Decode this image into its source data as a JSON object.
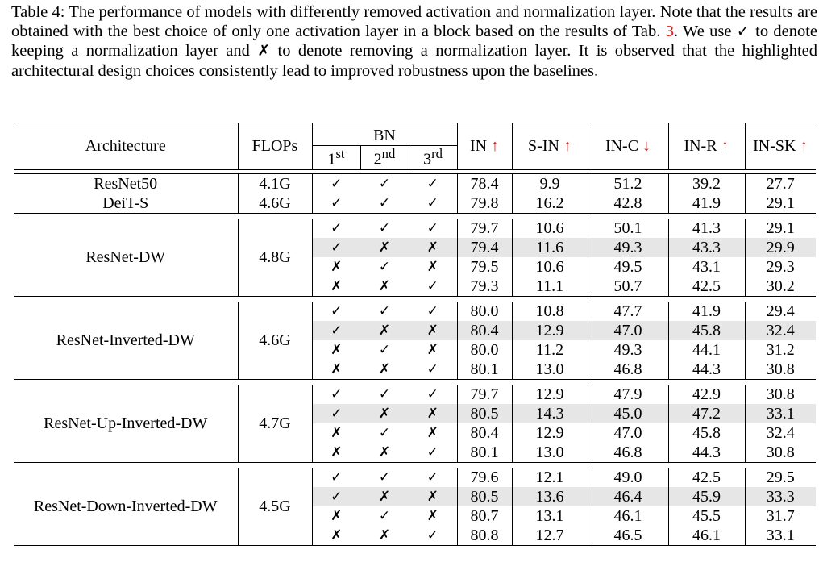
{
  "caption": {
    "prefix": "Table 4: The performance of models with differently removed activation and normalization layer. Note that the results are obtained with the best choice of only one activation layer in a block based on the results of Tab. ",
    "ref": "3",
    "middle1": ". We use ",
    "check": "✓",
    "middle2": " to denote keeping a normalization layer and ",
    "cross": "✗",
    "suffix": " to denote removing a normalization layer. It is observed that the highlighted architectural design choices consistently lead to improved robustness upon the baselines."
  },
  "header": {
    "architecture": "Architecture",
    "flops": "FLOPs",
    "bn": "BN",
    "bn_sub": [
      {
        "num": "1",
        "sup": "st"
      },
      {
        "num": "2",
        "sup": "nd"
      },
      {
        "num": "3",
        "sup": "rd"
      }
    ],
    "metrics": [
      {
        "label": "IN",
        "arrow": "↑"
      },
      {
        "label": "S-IN",
        "arrow": "↑"
      },
      {
        "label": "IN-C",
        "arrow": "↓"
      },
      {
        "label": "IN-R",
        "arrow": "↑"
      },
      {
        "label": "IN-SK",
        "arrow": "↑"
      }
    ]
  },
  "baselines": [
    {
      "arch": "ResNet50",
      "flops": "4.1G",
      "bn": [
        "✓",
        "✓",
        "✓"
      ],
      "values": [
        "78.4",
        "9.9",
        "51.2",
        "39.2",
        "27.7"
      ]
    },
    {
      "arch": "DeiT-S",
      "flops": "4.6G",
      "bn": [
        "✓",
        "✓",
        "✓"
      ],
      "values": [
        "79.8",
        "16.2",
        "42.8",
        "41.9",
        "29.1"
      ]
    }
  ],
  "groups": [
    {
      "arch": "ResNet-DW",
      "flops": "4.8G",
      "rows": [
        {
          "bn": [
            "✓",
            "✓",
            "✓"
          ],
          "values": [
            "79.7",
            "10.6",
            "50.1",
            "41.3",
            "29.1"
          ],
          "highlight": false
        },
        {
          "bn": [
            "✓",
            "✗",
            "✗"
          ],
          "values": [
            "79.4",
            "11.6",
            "49.3",
            "43.3",
            "29.9"
          ],
          "highlight": true
        },
        {
          "bn": [
            "✗",
            "✓",
            "✗"
          ],
          "values": [
            "79.5",
            "10.6",
            "49.5",
            "43.1",
            "29.3"
          ],
          "highlight": false
        },
        {
          "bn": [
            "✗",
            "✗",
            "✓"
          ],
          "values": [
            "79.3",
            "11.1",
            "50.7",
            "42.5",
            "30.2"
          ],
          "highlight": false
        }
      ]
    },
    {
      "arch": "ResNet-Inverted-DW",
      "flops": "4.6G",
      "rows": [
        {
          "bn": [
            "✓",
            "✓",
            "✓"
          ],
          "values": [
            "80.0",
            "10.8",
            "47.7",
            "41.9",
            "29.4"
          ],
          "highlight": false
        },
        {
          "bn": [
            "✓",
            "✗",
            "✗"
          ],
          "values": [
            "80.4",
            "12.9",
            "47.0",
            "45.8",
            "32.4"
          ],
          "highlight": true
        },
        {
          "bn": [
            "✗",
            "✓",
            "✗"
          ],
          "values": [
            "80.0",
            "11.2",
            "49.3",
            "44.1",
            "31.2"
          ],
          "highlight": false
        },
        {
          "bn": [
            "✗",
            "✗",
            "✓"
          ],
          "values": [
            "80.1",
            "13.0",
            "46.8",
            "44.3",
            "30.8"
          ],
          "highlight": false
        }
      ]
    },
    {
      "arch": "ResNet-Up-Inverted-DW",
      "flops": "4.7G",
      "rows": [
        {
          "bn": [
            "✓",
            "✓",
            "✓"
          ],
          "values": [
            "79.7",
            "12.9",
            "47.9",
            "42.9",
            "30.8"
          ],
          "highlight": false
        },
        {
          "bn": [
            "✓",
            "✗",
            "✗"
          ],
          "values": [
            "80.5",
            "14.3",
            "45.0",
            "47.2",
            "33.1"
          ],
          "highlight": true
        },
        {
          "bn": [
            "✗",
            "✓",
            "✗"
          ],
          "values": [
            "80.4",
            "12.9",
            "47.0",
            "45.8",
            "32.4"
          ],
          "highlight": false
        },
        {
          "bn": [
            "✗",
            "✗",
            "✓"
          ],
          "values": [
            "80.1",
            "13.0",
            "46.8",
            "44.3",
            "30.8"
          ],
          "highlight": false
        }
      ]
    },
    {
      "arch": "ResNet-Down-Inverted-DW",
      "flops": "4.5G",
      "rows": [
        {
          "bn": [
            "✓",
            "✓",
            "✓"
          ],
          "values": [
            "79.6",
            "12.1",
            "49.0",
            "42.5",
            "29.5"
          ],
          "highlight": false
        },
        {
          "bn": [
            "✓",
            "✗",
            "✗"
          ],
          "values": [
            "80.5",
            "13.6",
            "46.4",
            "45.9",
            "33.3"
          ],
          "highlight": true
        },
        {
          "bn": [
            "✗",
            "✓",
            "✗"
          ],
          "values": [
            "80.7",
            "13.1",
            "46.1",
            "45.5",
            "31.7"
          ],
          "highlight": false
        },
        {
          "bn": [
            "✗",
            "✗",
            "✓"
          ],
          "values": [
            "80.8",
            "12.7",
            "46.5",
            "46.1",
            "33.1"
          ],
          "highlight": false
        }
      ]
    }
  ]
}
